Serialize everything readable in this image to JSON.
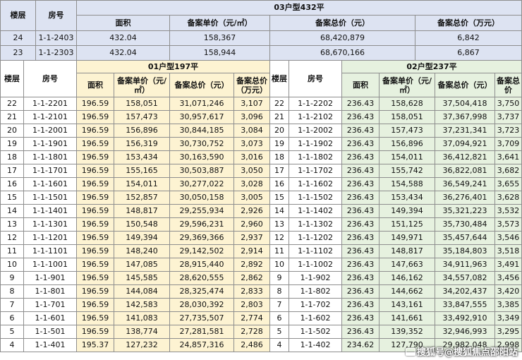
{
  "top": {
    "h_floor": "楼层",
    "h_room": "房号",
    "title": "03户型432平",
    "h_area": "面积",
    "h_unit": "备案单价（元/㎡）",
    "h_total": "备案总价（元）",
    "h_total_wan": "备案总价（万元）",
    "rows": [
      [
        "24",
        "1-1-2403",
        "432.04",
        "158,367",
        "68,420,879",
        "6,842"
      ],
      [
        "23",
        "1-1-2303",
        "432.04",
        "158,944",
        "68,670,166",
        "6,867"
      ]
    ]
  },
  "left": {
    "h_floor": "楼层",
    "h_room": "房号",
    "title": "01户型197平",
    "h_area": "面积",
    "h_unit": "备案单价（元/㎡）",
    "h_total": "备案总价（元）",
    "h_total_wan": "备案总价（万元）"
  },
  "right": {
    "h_floor": "楼层",
    "h_room": "房号",
    "title": "02户型237平",
    "h_area": "面积",
    "h_unit": "备案单价（元/㎡）",
    "h_total": "备案总价（元）",
    "h_total_wan": "备案总价"
  },
  "rows": [
    [
      "22",
      "1-1-2201",
      "196.59",
      "158,051",
      "31,071,246",
      "3,107",
      "22",
      "1-1-2202",
      "236.43",
      "158,628",
      "37,504,418",
      "3,750"
    ],
    [
      "21",
      "1-1-2101",
      "196.59",
      "157,473",
      "30,957,617",
      "3,096",
      "21",
      "1-1-2102",
      "236.43",
      "158,051",
      "37,367,998",
      "3,737"
    ],
    [
      "20",
      "1-1-2001",
      "196.59",
      "156,896",
      "30,844,185",
      "3,084",
      "20",
      "1-1-2002",
      "236.43",
      "157,473",
      "37,231,341",
      "3,723"
    ],
    [
      "19",
      "1-1-1901",
      "196.59",
      "156,319",
      "30,730,752",
      "3,073",
      "19",
      "1-1-1902",
      "236.43",
      "156,896",
      "37,094,921",
      "3,709"
    ],
    [
      "18",
      "1-1-1801",
      "196.59",
      "153,434",
      "30,163,590",
      "3,016",
      "18",
      "1-1-1802",
      "236.43",
      "154,011",
      "36,412,821",
      "3,641"
    ],
    [
      "17",
      "1-1-1701",
      "196.59",
      "155,165",
      "30,503,887",
      "3,050",
      "17",
      "1-1-1702",
      "236.43",
      "155,742",
      "36,822,081",
      "3,682"
    ],
    [
      "16",
      "1-1-1601",
      "196.59",
      "154,011",
      "30,277,022",
      "3,028",
      "16",
      "1-1-1602",
      "236.43",
      "154,588",
      "36,549,241",
      "3,655"
    ],
    [
      "15",
      "1-1-1501",
      "196.59",
      "152,857",
      "30,050,158",
      "3,005",
      "15",
      "1-1-1502",
      "236.43",
      "153,434",
      "36,276,401",
      "3,628"
    ],
    [
      "14",
      "1-1-1401",
      "196.59",
      "148,817",
      "29,255,934",
      "2,926",
      "14",
      "1-1-1402",
      "236.43",
      "149,394",
      "35,321,223",
      "3,532"
    ],
    [
      "13",
      "1-1-1301",
      "196.59",
      "150,548",
      "29,596,231",
      "2,960",
      "13",
      "1-1-1302",
      "236.43",
      "151,125",
      "35,730,484",
      "3,573"
    ],
    [
      "12",
      "1-1-1201",
      "196.59",
      "149,394",
      "29,369,366",
      "2,937",
      "12",
      "1-1-1202",
      "236.43",
      "149,971",
      "35,457,644",
      "3,546"
    ],
    [
      "11",
      "1-1-1101",
      "196.59",
      "148,240",
      "29,142,502",
      "2,914",
      "11",
      "1-1-1102",
      "236.43",
      "148,817",
      "35,184,803",
      "3,518"
    ],
    [
      "10",
      "1-1-1001",
      "196.59",
      "147,085",
      "28,915,440",
      "2,892",
      "10",
      "1-1-1002",
      "236.43",
      "147,663",
      "34,911,963",
      "3,491"
    ],
    [
      "9",
      "1-1-901",
      "196.59",
      "145,585",
      "28,620,555",
      "2,862",
      "9",
      "1-1-902",
      "236.43",
      "146,162",
      "34,557,082",
      "3,456"
    ],
    [
      "8",
      "1-1-801",
      "196.59",
      "144,084",
      "28,325,474",
      "2,833",
      "8",
      "1-1-802",
      "236.43",
      "144,662",
      "34,202,437",
      "3,420"
    ],
    [
      "7",
      "1-1-701",
      "196.59",
      "142,583",
      "28,030,392",
      "2,803",
      "7",
      "1-1-702",
      "236.43",
      "143,161",
      "33,847,555",
      "3,385"
    ],
    [
      "6",
      "1-1-601",
      "196.59",
      "141,083",
      "27,735,507",
      "2,774",
      "6",
      "1-1-602",
      "236.43",
      "141,661",
      "33,492,910",
      "3,349"
    ],
    [
      "5",
      "1-1-501",
      "196.59",
      "138,774",
      "27,281,581",
      "2,728",
      "5",
      "1-1-502",
      "236.43",
      "139,352",
      "32,946,993",
      "3,295"
    ],
    [
      "4",
      "1-1-401",
      "195.37",
      "127,232",
      "24,857,316",
      "2,486",
      "4",
      "1-1-402",
      "234.62",
      "127,790",
      "29,982,048",
      "2,998"
    ]
  ],
  "watermark": "搜狐号@搜狐焦点邵阳站"
}
